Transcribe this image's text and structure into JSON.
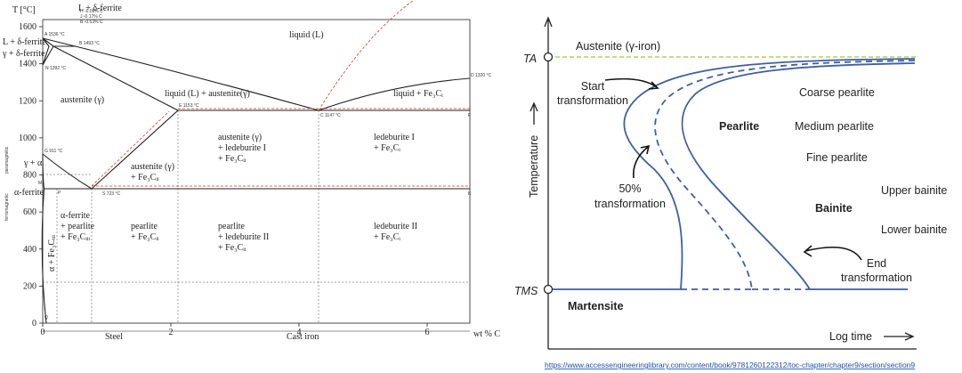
{
  "left": {
    "y_axis_label": "T [°C]",
    "x_axis_label": "wt % C",
    "yticks": [
      0,
      200,
      400,
      600,
      800,
      1000,
      1200,
      1400,
      1600
    ],
    "xticks": [
      0,
      2,
      4,
      6
    ],
    "labels": [
      "liquid (L)",
      "L + δ-ferrite",
      "L + δ-ferrite",
      "γ + δ-ferrite",
      "austenite (γ)",
      "liquid (L) + austenite(γ)",
      "liquid + Fe₃Cᵢ",
      "austenite (γ)",
      "+ ledeburite I",
      "+ Fe₃Cᵢᵢ",
      "ledeburite I",
      "+ Fe₃Cᵢ",
      "austenite (γ)",
      "+ Fe₃Cᵢᵢ",
      "α-ferrite",
      "+ pearlite",
      "+ Fe₃Cᵢᵢᵢ",
      "pearlite",
      "+ Fe₃Cᵢᵢ",
      "pearlite",
      "+ ledeburite II",
      "+ Fe₃Cᵢᵢ",
      "ledeburite II",
      "+ Fe₃Cᵢ",
      "γ + α",
      "α-ferrite",
      "α + Fe₃Cᵢᵢᵢ"
    ],
    "points": [
      "A 1536 °C",
      "B 1493 °C",
      "N 1392 °C",
      "E 1153 °C",
      "C 1147 °C",
      "D 1320 °C",
      "G 911 °C",
      "S 723 °C",
      "P",
      "K",
      "F",
      "M",
      "Q",
      "H -0.09% C",
      "J -0.17% C",
      "B -0.53% C"
    ],
    "sections": [
      "Steel",
      "Cast iron"
    ],
    "magnetic": [
      "ferromagnetic",
      "paramagnetic"
    ]
  },
  "right": {
    "ta": "TA",
    "tms": "TMS",
    "austenite": "Austenite (γ-iron)",
    "y_axis_label": "Temperature",
    "x_axis_label": "Log time",
    "start": [
      "Start",
      "transformation"
    ],
    "half": [
      "50%",
      "transformation"
    ],
    "end": [
      "End",
      "transformation"
    ],
    "pearlite": "Pearlite",
    "coarse": "Coarse pearlite",
    "medium": "Medium pearlite",
    "fine": "Fine pearlite",
    "bainite": "Bainite",
    "upper": "Upper bainite",
    "lower": "Lower bainite",
    "martensite": "Martensite",
    "source": "https://www.accessengineeringlibrary.com/content/book/9781260122312/toc-chapter/chapter9/section/section9"
  }
}
